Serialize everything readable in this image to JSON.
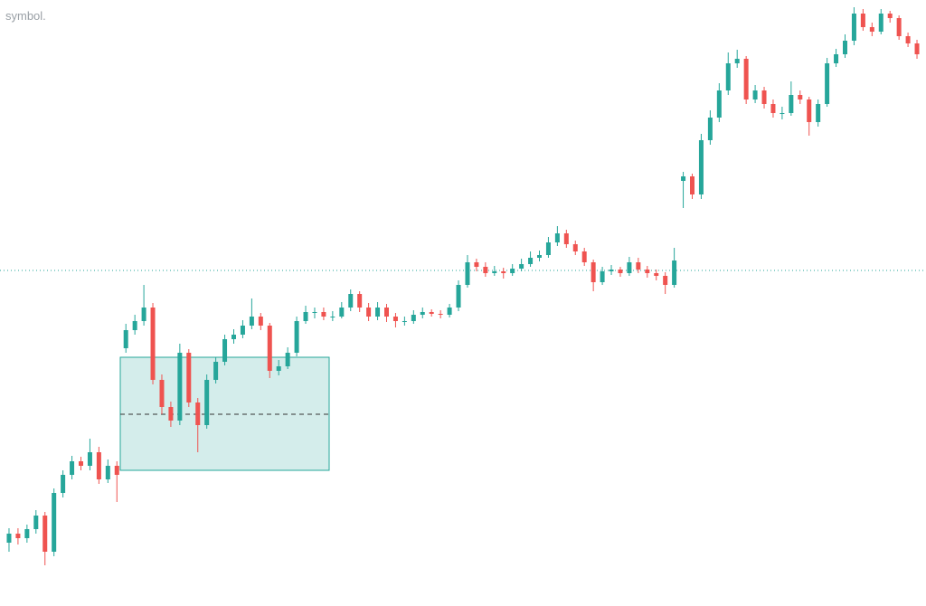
{
  "chart_data": {
    "type": "candlestick",
    "subtitle": "symbol.",
    "up_color": "#26a69a",
    "down_color": "#ef5350",
    "ylim": [
      0,
      670
    ],
    "open": [
      70,
      80,
      75,
      85,
      100,
      60,
      125,
      145,
      160,
      155,
      170,
      140,
      155,
      285,
      305,
      315,
      330,
      250,
      220,
      205,
      280,
      225,
      200,
      250,
      270,
      295,
      300,
      310,
      320,
      310,
      260,
      265,
      280,
      315,
      325,
      325,
      320,
      320,
      330,
      345,
      330,
      320,
      330,
      320,
      315,
      315,
      322,
      325,
      323,
      322,
      330,
      355,
      380,
      375,
      368,
      370,
      368,
      373,
      378,
      385,
      388,
      402,
      412,
      400,
      392,
      380,
      358,
      370,
      372,
      368,
      380,
      372,
      368,
      365,
      355,
      470,
      475,
      455,
      515,
      540,
      570,
      600,
      605,
      560,
      570,
      555,
      545,
      545,
      565,
      560,
      535,
      555,
      600,
      610,
      625,
      655,
      640,
      635,
      655,
      650,
      630,
      622
    ],
    "high": [
      86,
      86,
      90,
      106,
      104,
      130,
      150,
      166,
      165,
      185,
      176,
      162,
      160,
      312,
      322,
      355,
      335,
      256,
      226,
      290,
      284,
      230,
      256,
      275,
      300,
      306,
      316,
      340,
      324,
      313,
      272,
      286,
      320,
      332,
      330,
      330,
      326,
      336,
      350,
      348,
      335,
      336,
      334,
      324,
      320,
      327,
      330,
      328,
      327,
      334,
      360,
      388,
      384,
      380,
      376,
      374,
      378,
      384,
      392,
      393,
      408,
      420,
      416,
      404,
      396,
      383,
      375,
      377,
      375,
      386,
      385,
      376,
      372,
      369,
      396,
      480,
      478,
      522,
      548,
      578,
      612,
      615,
      608,
      576,
      574,
      560,
      552,
      580,
      570,
      563,
      560,
      606,
      616,
      632,
      662,
      660,
      645,
      660,
      658,
      653,
      634,
      626
    ],
    "low": [
      60,
      68,
      70,
      80,
      45,
      55,
      120,
      140,
      150,
      150,
      135,
      136,
      115,
      280,
      300,
      310,
      245,
      212,
      198,
      200,
      220,
      170,
      196,
      246,
      266,
      290,
      296,
      306,
      305,
      252,
      255,
      262,
      276,
      312,
      318,
      316,
      315,
      318,
      326,
      325,
      315,
      316,
      314,
      308,
      310,
      312,
      318,
      320,
      318,
      319,
      326,
      352,
      370,
      364,
      365,
      362,
      365,
      370,
      375,
      381,
      385,
      398,
      396,
      388,
      376,
      348,
      355,
      366,
      364,
      365,
      368,
      363,
      360,
      345,
      352,
      440,
      450,
      450,
      510,
      535,
      565,
      595,
      555,
      556,
      550,
      540,
      538,
      542,
      555,
      520,
      530,
      552,
      596,
      606,
      620,
      636,
      630,
      632,
      645,
      626,
      618,
      605
    ],
    "close": [
      80,
      75,
      85,
      100,
      60,
      125,
      145,
      160,
      155,
      170,
      140,
      155,
      145,
      305,
      315,
      330,
      250,
      220,
      205,
      280,
      225,
      200,
      250,
      270,
      295,
      300,
      310,
      320,
      310,
      260,
      265,
      280,
      315,
      325,
      325,
      320,
      320,
      330,
      345,
      330,
      320,
      330,
      320,
      315,
      315,
      322,
      325,
      323,
      322,
      330,
      355,
      380,
      375,
      368,
      370,
      368,
      373,
      378,
      385,
      388,
      402,
      412,
      400,
      392,
      380,
      358,
      370,
      372,
      368,
      380,
      372,
      368,
      365,
      355,
      382,
      475,
      455,
      515,
      540,
      570,
      600,
      605,
      560,
      570,
      555,
      545,
      545,
      565,
      560,
      535,
      555,
      600,
      610,
      625,
      655,
      640,
      635,
      655,
      650,
      630,
      622,
      610
    ]
  }
}
